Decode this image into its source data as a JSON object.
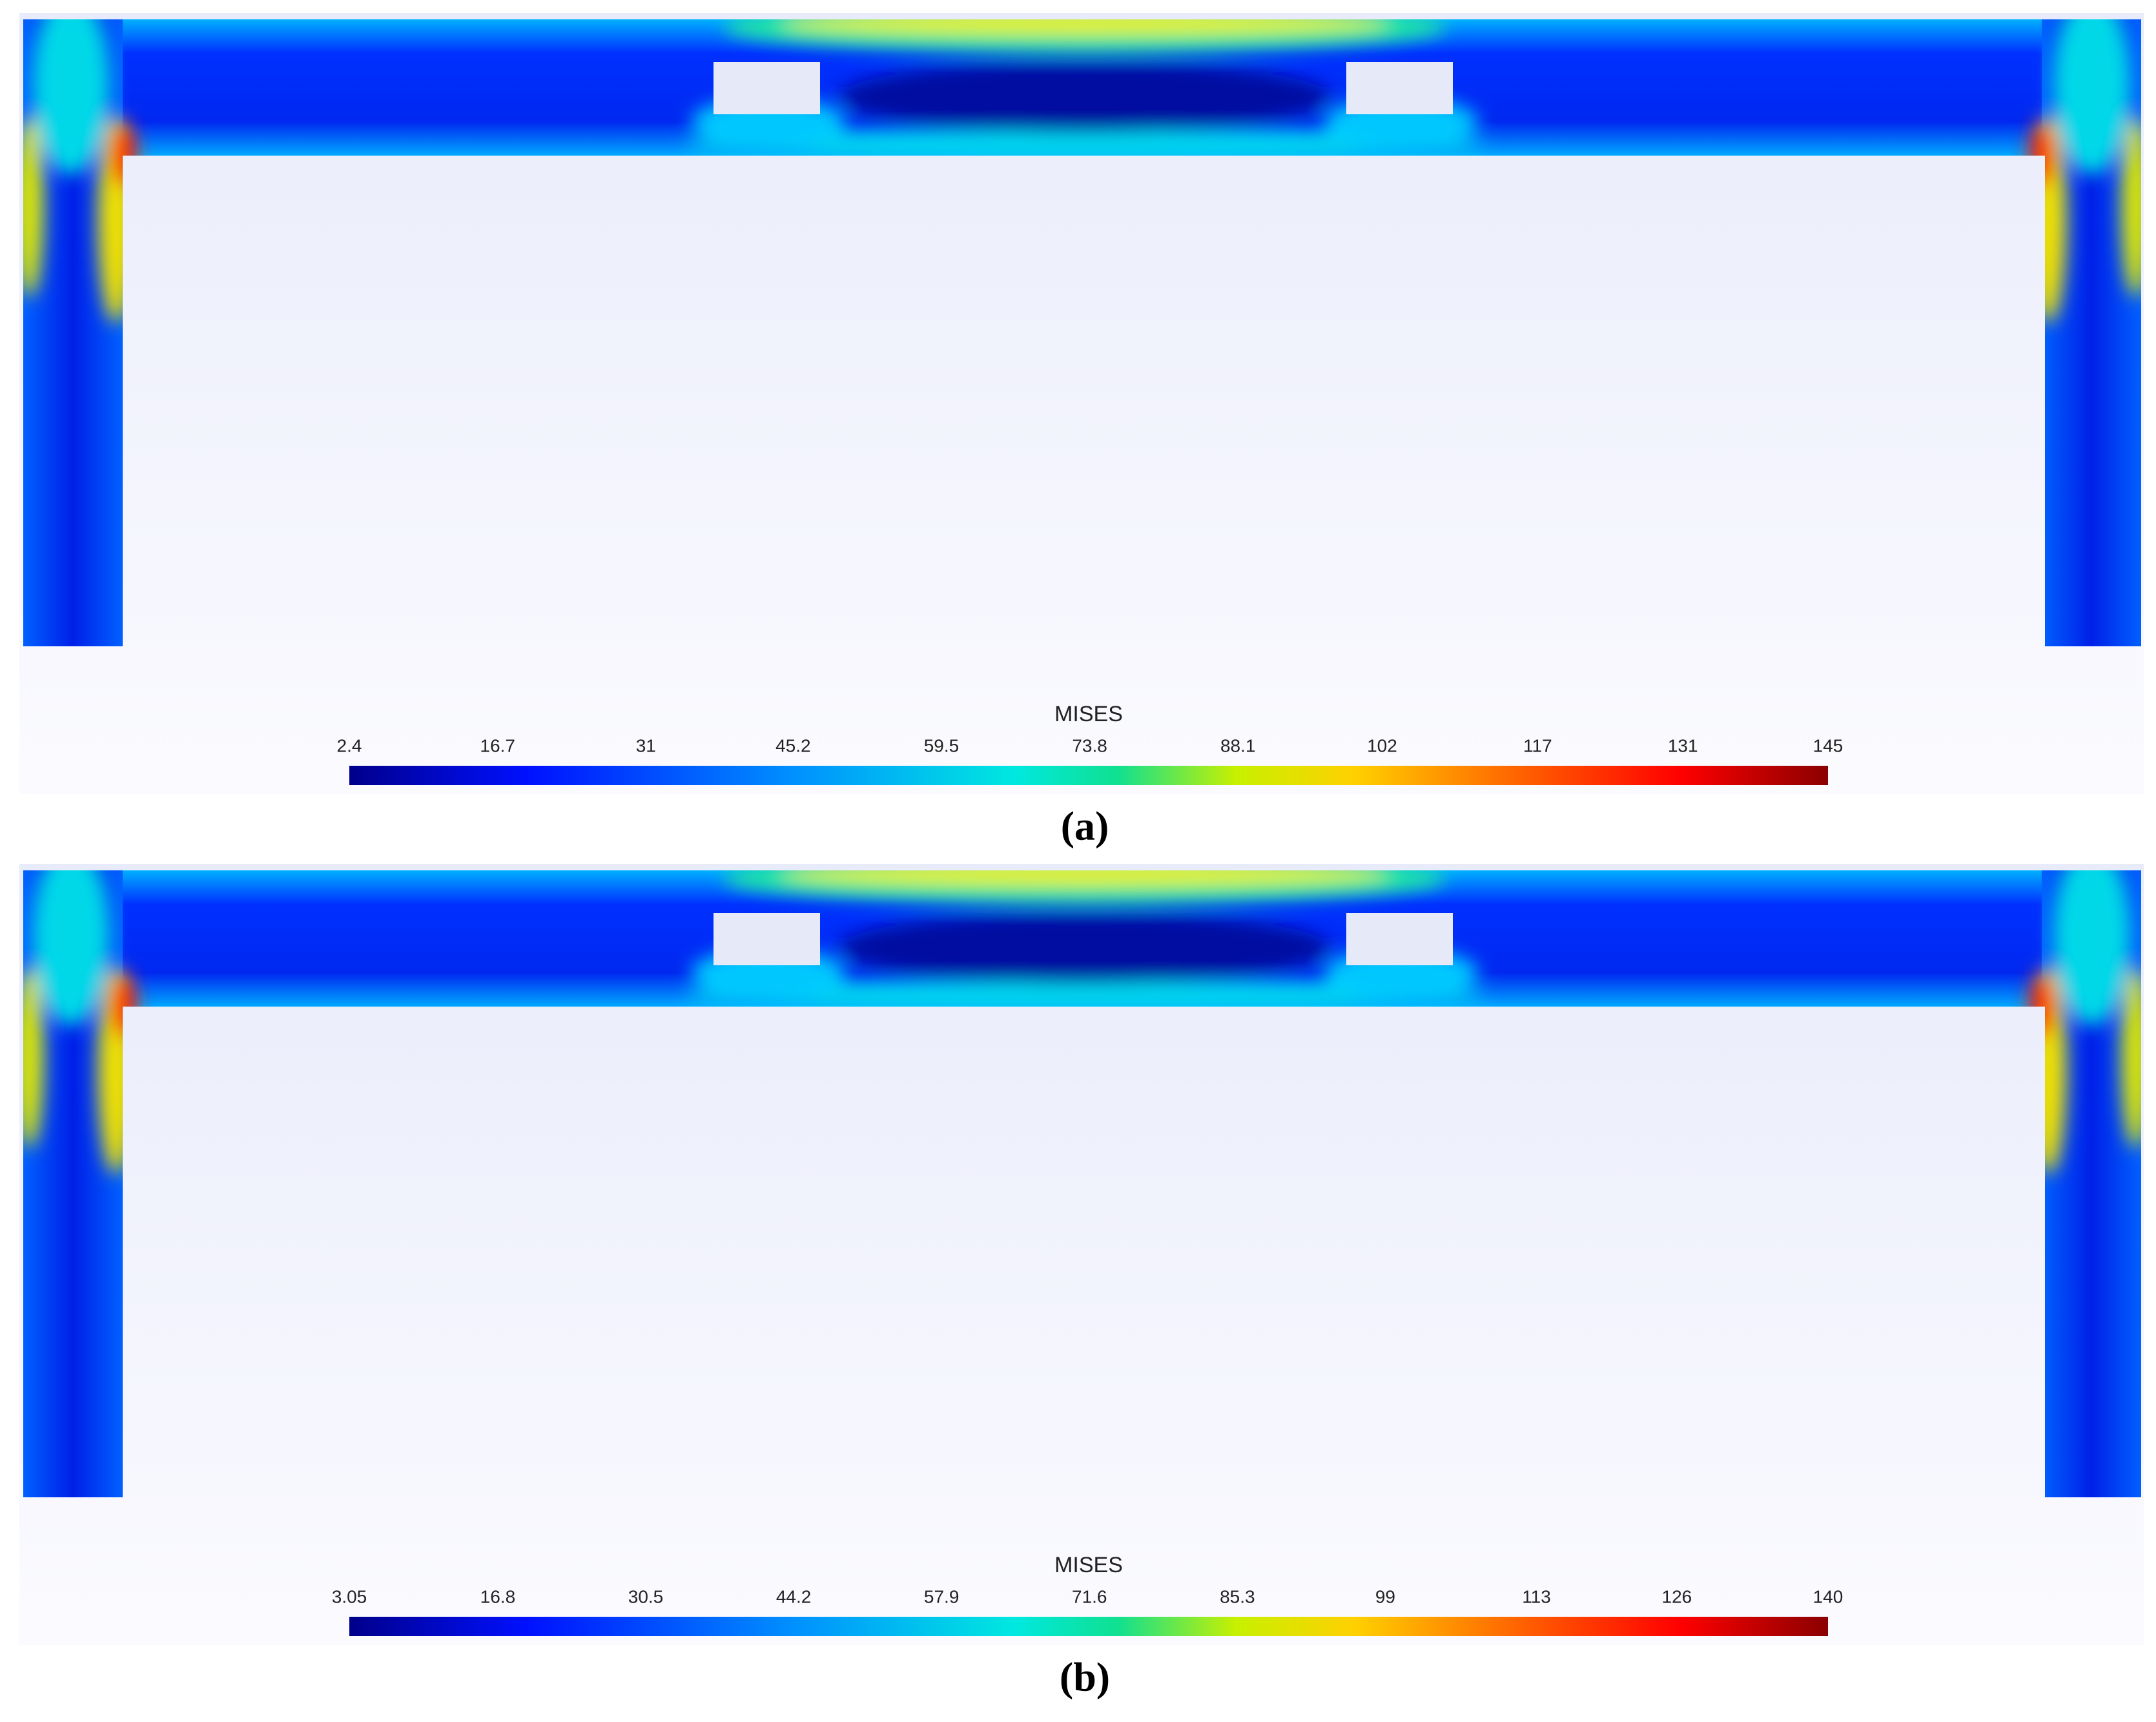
{
  "panels": [
    {
      "label": "(a)",
      "legend": {
        "title": "MISES",
        "lim": [
          2.4,
          145
        ],
        "ticks": [
          2.4,
          16.7,
          31,
          45.2,
          59.5,
          73.8,
          88.1,
          102,
          117,
          131,
          145
        ]
      }
    },
    {
      "label": "(b)",
      "legend": {
        "title": "MISES",
        "lim": [
          3.05,
          140
        ],
        "ticks": [
          3.05,
          16.8,
          30.5,
          44.2,
          57.9,
          71.6,
          85.3,
          99,
          113,
          126,
          140
        ]
      }
    }
  ]
}
